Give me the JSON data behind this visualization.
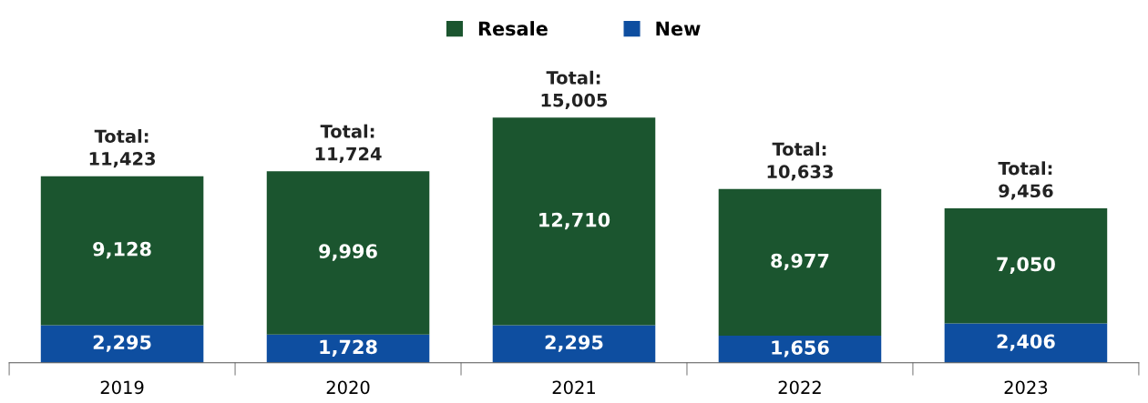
{
  "chart_data": {
    "type": "bar",
    "stacked": true,
    "categories": [
      "2019",
      "2020",
      "2021",
      "2022",
      "2023"
    ],
    "series": [
      {
        "name": "New",
        "color": "#0e4ea0",
        "values": [
          2295,
          1728,
          2295,
          1656,
          2406
        ],
        "value_labels": [
          "2,295",
          "1,728",
          "2,295",
          "1,656",
          "2,406"
        ]
      },
      {
        "name": "Resale",
        "color": "#1b552f",
        "values": [
          9128,
          9996,
          12710,
          8977,
          7050
        ],
        "value_labels": [
          "9,128",
          "9,996",
          "12,710",
          "8,977",
          "7,050"
        ]
      }
    ],
    "totals": [
      "Total:\n11,423",
      "Total:\n11,724",
      "Total:\n15,005",
      "Total:\n10,633",
      "Total:\n9,456"
    ],
    "legend": "top",
    "grid": false
  }
}
